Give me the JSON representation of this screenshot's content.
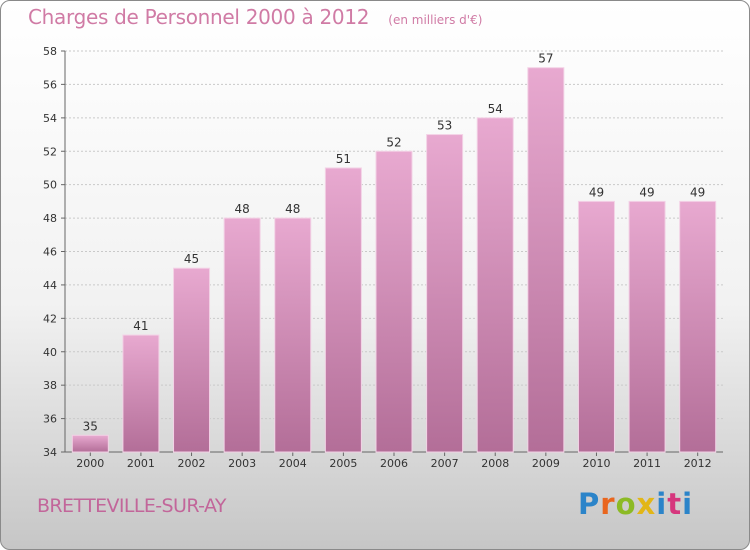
{
  "header": {
    "title": "Charges de Personnel 2000 à 2012",
    "subtitle": "(en milliers d'€)"
  },
  "footer": {
    "place": "BRETTEVILLE-SUR-AY",
    "logo": "Proxiti"
  },
  "colors": {
    "bar_top": "#e8a9d0",
    "bar_bottom": "#b36e98",
    "title": "#d07ba5",
    "place": "#c2669a"
  },
  "chart_data": {
    "type": "bar",
    "title": "Charges de Personnel 2000 à 2012",
    "subtitle": "(en milliers d'€)",
    "categories": [
      "2000",
      "2001",
      "2002",
      "2003",
      "2004",
      "2005",
      "2006",
      "2007",
      "2008",
      "2009",
      "2010",
      "2011",
      "2012"
    ],
    "values": [
      35,
      41,
      45,
      48,
      48,
      51,
      52,
      53,
      54,
      57,
      49,
      49,
      49
    ],
    "ylim": [
      34,
      58
    ],
    "yticks": [
      34,
      36,
      38,
      40,
      42,
      44,
      46,
      48,
      50,
      52,
      54,
      56,
      58
    ],
    "grid": true,
    "data_labels": true,
    "legend": false
  }
}
